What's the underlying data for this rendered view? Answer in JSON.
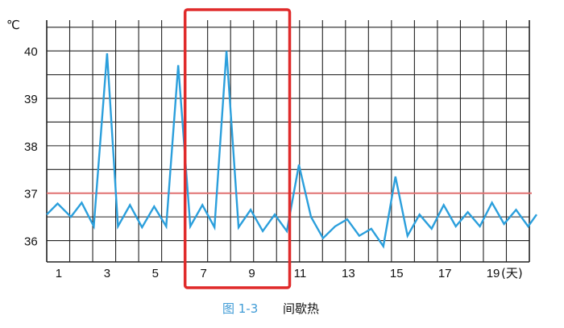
{
  "chart_data": {
    "type": "line",
    "y_unit": "℃",
    "x_unit": "(天)",
    "yticks": [
      36,
      37,
      38,
      39,
      40
    ],
    "xticks": [
      1,
      3,
      5,
      7,
      9,
      11,
      13,
      15,
      17,
      19
    ],
    "xlim": [
      0.5,
      20.5
    ],
    "ylim": [
      35.55,
      40.65
    ],
    "grid": true,
    "series": [
      {
        "color": "#2b9fdc",
        "points": [
          [
            0.5,
            36.55
          ],
          [
            0.95,
            36.78
          ],
          [
            1.5,
            36.5
          ],
          [
            1.95,
            36.8
          ],
          [
            2.45,
            36.3
          ],
          [
            3.0,
            39.95
          ],
          [
            3.45,
            36.3
          ],
          [
            3.95,
            36.75
          ],
          [
            4.45,
            36.28
          ],
          [
            4.95,
            36.72
          ],
          [
            5.45,
            36.3
          ],
          [
            5.95,
            39.7
          ],
          [
            6.45,
            36.3
          ],
          [
            6.95,
            36.75
          ],
          [
            7.45,
            36.28
          ],
          [
            7.95,
            40.0
          ],
          [
            8.45,
            36.28
          ],
          [
            8.95,
            36.65
          ],
          [
            9.45,
            36.2
          ],
          [
            9.95,
            36.55
          ],
          [
            10.45,
            36.2
          ],
          [
            10.95,
            37.6
          ],
          [
            11.45,
            36.5
          ],
          [
            11.95,
            36.05
          ],
          [
            12.45,
            36.3
          ],
          [
            12.95,
            36.45
          ],
          [
            13.45,
            36.1
          ],
          [
            13.95,
            36.25
          ],
          [
            14.45,
            35.88
          ],
          [
            14.95,
            37.35
          ],
          [
            15.45,
            36.1
          ],
          [
            15.95,
            36.55
          ],
          [
            16.45,
            36.25
          ],
          [
            16.95,
            36.75
          ],
          [
            17.45,
            36.3
          ],
          [
            17.95,
            36.6
          ],
          [
            18.45,
            36.3
          ],
          [
            18.95,
            36.8
          ],
          [
            19.45,
            36.35
          ],
          [
            19.95,
            36.65
          ],
          [
            20.45,
            36.3
          ],
          [
            20.8,
            36.55
          ]
        ]
      }
    ],
    "reference_line": {
      "y": 37.0,
      "color": "#e07070"
    },
    "highlight": {
      "x_range": [
        6.5,
        10.5
      ],
      "color": "#e02b2b"
    }
  },
  "caption": {
    "number": "图 1-3",
    "title": "间歇热"
  }
}
